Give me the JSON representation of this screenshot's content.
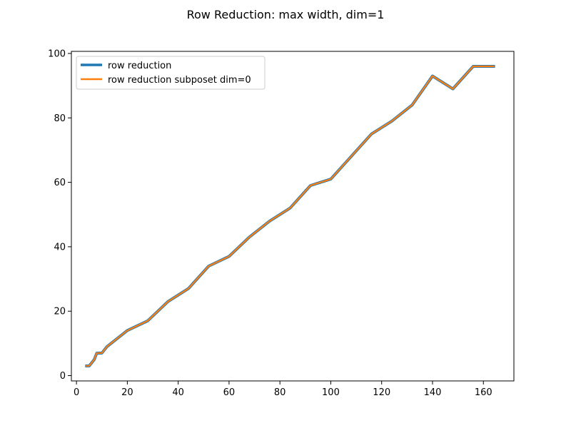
{
  "chart_data": {
    "type": "line",
    "title": "Row Reduction: max width, dim=1",
    "xlabel": "",
    "ylabel": "",
    "xlim": [
      -2.0,
      172.0
    ],
    "ylim": [
      -1.65,
      100.65
    ],
    "xticks": [
      0,
      20,
      40,
      60,
      80,
      100,
      120,
      140,
      160
    ],
    "yticks": [
      0,
      20,
      40,
      60,
      80,
      100
    ],
    "grid": false,
    "legend_position": "upper-left",
    "x": [
      4,
      5,
      6,
      7,
      8,
      9,
      10,
      12,
      20,
      28,
      36,
      44,
      52,
      60,
      68,
      76,
      84,
      92,
      100,
      108,
      116,
      124,
      132,
      140,
      148,
      156,
      164
    ],
    "series": [
      {
        "name": "row reduction",
        "color": "#1f77b4",
        "values": [
          3,
          3,
          4,
          5,
          7,
          7,
          7,
          9,
          14,
          17,
          23,
          27,
          34,
          37,
          43,
          48,
          52,
          59,
          61,
          68,
          75,
          79,
          84,
          93,
          89,
          96,
          96
        ]
      },
      {
        "name": "row reduction subposet dim=0",
        "color": "#ff7f0e",
        "values": [
          3,
          3,
          4,
          5,
          7,
          7,
          7,
          9,
          14,
          17,
          23,
          27,
          34,
          37,
          43,
          48,
          52,
          59,
          61,
          68,
          75,
          79,
          84,
          93,
          89,
          96,
          96
        ]
      }
    ]
  }
}
